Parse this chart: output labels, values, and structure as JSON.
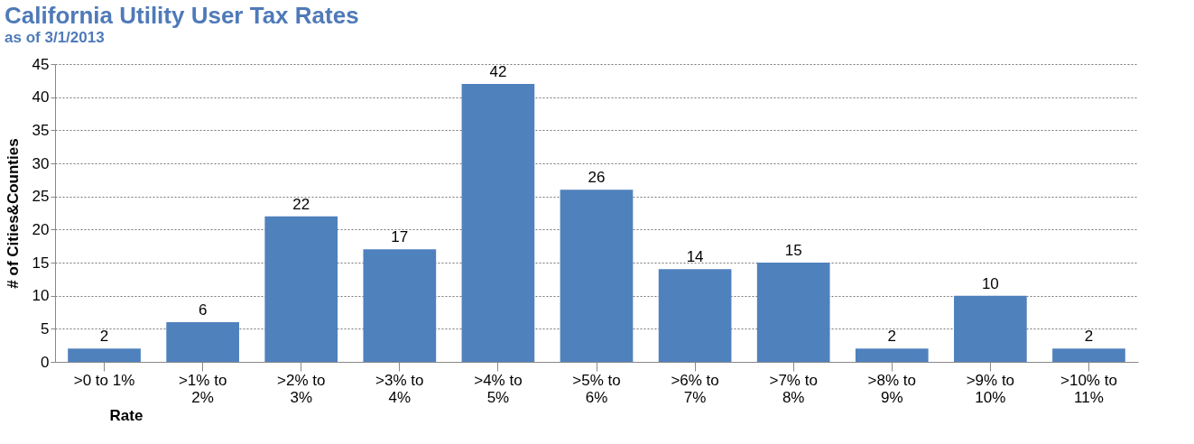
{
  "chart_data": {
    "type": "bar",
    "title": "California Utility User Tax Rates",
    "subtitle": "as of 3/1/2013",
    "xlabel": "Rate",
    "ylabel": "# of Cities&Counties",
    "categories": [
      ">0 to 1%",
      ">1% to\n2%",
      ">2% to\n3%",
      ">3% to\n4%",
      ">4% to\n5%",
      ">5% to\n6%",
      ">6% to\n7%",
      ">7% to\n8%",
      ">8% to\n9%",
      ">9% to\n10%",
      ">10% to\n11%"
    ],
    "values": [
      2,
      6,
      22,
      17,
      42,
      26,
      14,
      15,
      2,
      10,
      2
    ],
    "color": "#4f81bd",
    "ylim": [
      0,
      45
    ],
    "yticks": [
      0,
      5,
      10,
      15,
      20,
      25,
      30,
      35,
      40,
      45
    ],
    "grid": "y",
    "data_labels": true
  }
}
